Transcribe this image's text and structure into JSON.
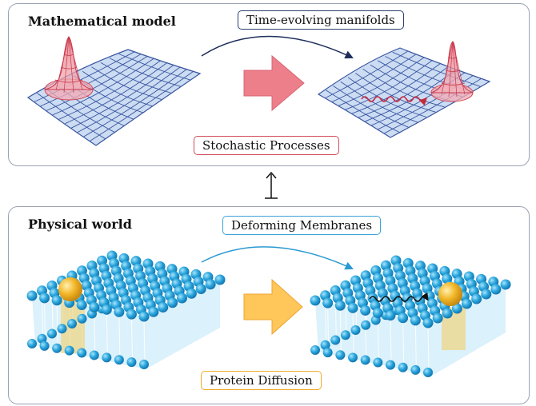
{
  "top_panel": {
    "title": "Mathematical model",
    "top_label": "Time-evolving manifolds",
    "bottom_label": "Stochastic Processes",
    "colors": {
      "grid_fill": "#cbdcf3",
      "grid_stroke": "#3a56a0",
      "peak": "#e0707e",
      "arrow": "#ec7f8a",
      "label_top_border": "#2c3e70",
      "label_bottom_border": "#d24b5a"
    }
  },
  "bottom_panel": {
    "title": "Physical world",
    "top_label": "Deforming Membranes",
    "bottom_label": "Protein Diffusion",
    "colors": {
      "bead": "#2aa6dd",
      "protein": "#f2b629",
      "arrow": "#ffc65a",
      "label_top_border": "#3aa3d8",
      "label_bottom_border": "#f0aa2b"
    }
  },
  "connector": {
    "icon": "double-headed-arrow-icon"
  }
}
